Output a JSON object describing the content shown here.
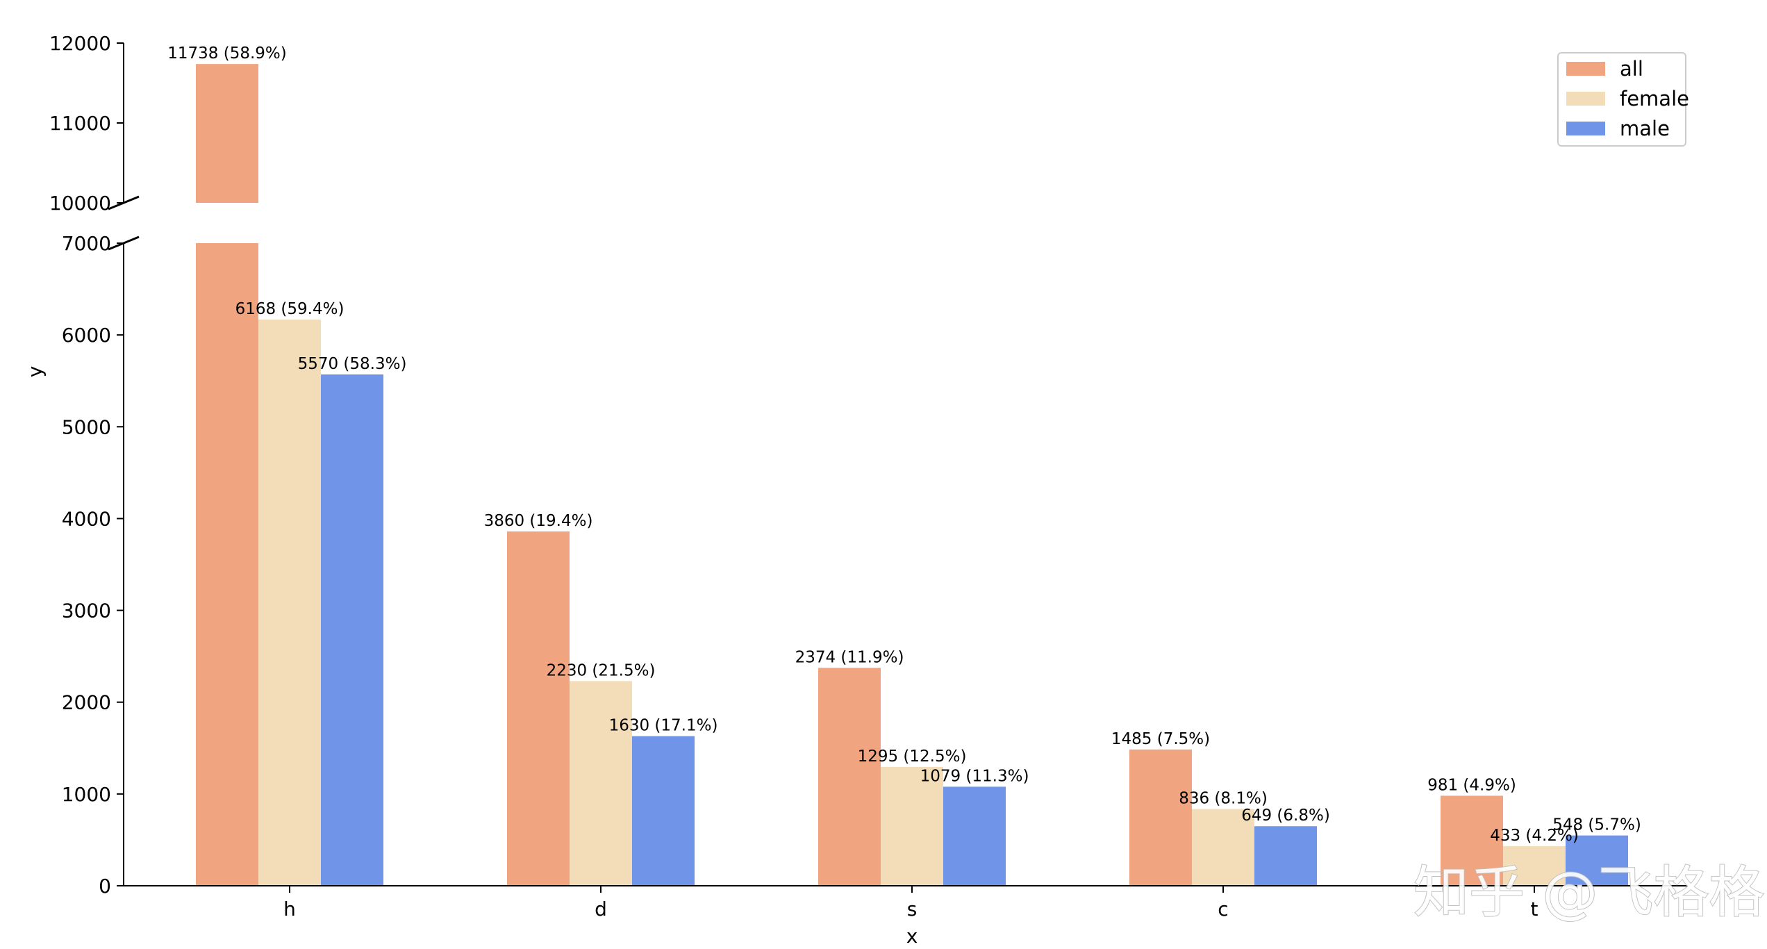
{
  "chart_data": {
    "type": "bar",
    "categories": [
      "h",
      "d",
      "s",
      "c",
      "t"
    ],
    "xlabel": "x",
    "ylabel": "y",
    "broken_axis": true,
    "ylim_lower": [
      0,
      7000
    ],
    "ylim_upper": [
      10000,
      12000
    ],
    "yticks_lower": [
      "0",
      "1000",
      "2000",
      "3000",
      "4000",
      "5000",
      "6000",
      "7000"
    ],
    "yticks_upper": [
      "10000",
      "11000",
      "12000"
    ],
    "grid": false,
    "legend_position": "top-right",
    "series": [
      {
        "name": "all",
        "color": "#F0A47F",
        "values": [
          11738,
          3860,
          2374,
          1485,
          981
        ],
        "labels": [
          "11738 (58.9%)",
          "3860 (19.4%)",
          "2374 (11.9%)",
          "1485 (7.5%)",
          "981 (4.9%)"
        ]
      },
      {
        "name": "female",
        "color": "#F2DDB8",
        "values": [
          6168,
          2230,
          1295,
          836,
          433
        ],
        "labels": [
          "6168 (59.4%)",
          "2230 (21.5%)",
          "1295 (12.5%)",
          "836 (8.1%)",
          "433 (4.2%)"
        ]
      },
      {
        "name": "male",
        "color": "#6F94E8",
        "values": [
          5570,
          1630,
          1079,
          649,
          548
        ],
        "labels": [
          "5570 (58.3%)",
          "1630 (17.1%)",
          "1079 (11.3%)",
          "649 (6.8%)",
          "548 (5.7%)"
        ]
      }
    ]
  },
  "watermark": "知乎 @飞格格"
}
